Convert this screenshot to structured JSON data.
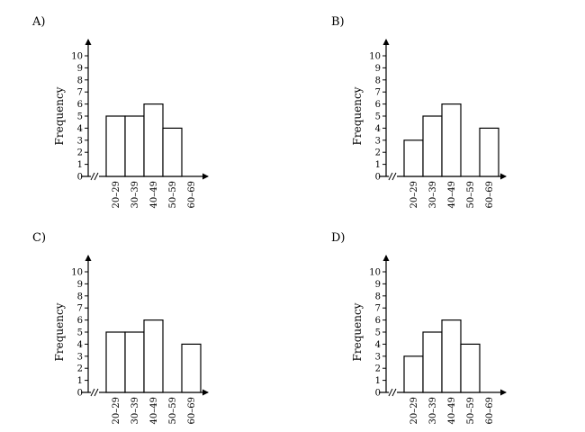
{
  "chart_data": [
    {
      "type": "bar",
      "label": "A)",
      "categories": [
        "20–29",
        "30–39",
        "40–49",
        "50–59",
        "60–69"
      ],
      "values": [
        5,
        5,
        6,
        4,
        0
      ],
      "ylabel": "Frequency",
      "ylim": [
        0,
        10
      ],
      "yticks": [
        "0",
        "1",
        "2",
        "3",
        "4",
        "5",
        "6",
        "7",
        "8",
        "9",
        "10"
      ],
      "axis_break": "//"
    },
    {
      "type": "bar",
      "label": "B)",
      "categories": [
        "20–29",
        "30–39",
        "40–49",
        "50–59",
        "60–69"
      ],
      "values": [
        3,
        5,
        6,
        0,
        4
      ],
      "ylabel": "Frequency",
      "ylim": [
        0,
        10
      ],
      "yticks": [
        "0",
        "1",
        "2",
        "3",
        "4",
        "5",
        "6",
        "7",
        "8",
        "9",
        "10"
      ],
      "axis_break": "//"
    },
    {
      "type": "bar",
      "label": "C)",
      "categories": [
        "20–29",
        "30–39",
        "40–49",
        "50–59",
        "60–69"
      ],
      "values": [
        5,
        5,
        6,
        0,
        4
      ],
      "ylabel": "Frequency",
      "ylim": [
        0,
        10
      ],
      "yticks": [
        "0",
        "1",
        "2",
        "3",
        "4",
        "5",
        "6",
        "7",
        "8",
        "9",
        "10"
      ],
      "axis_break": "//"
    },
    {
      "type": "bar",
      "label": "D)",
      "categories": [
        "20–29",
        "30–39",
        "40–49",
        "50–59",
        "60–69"
      ],
      "values": [
        3,
        5,
        6,
        4,
        0
      ],
      "ylabel": "Frequency",
      "ylim": [
        0,
        10
      ],
      "yticks": [
        "0",
        "1",
        "2",
        "3",
        "4",
        "5",
        "6",
        "7",
        "8",
        "9",
        "10"
      ],
      "axis_break": "//"
    }
  ]
}
